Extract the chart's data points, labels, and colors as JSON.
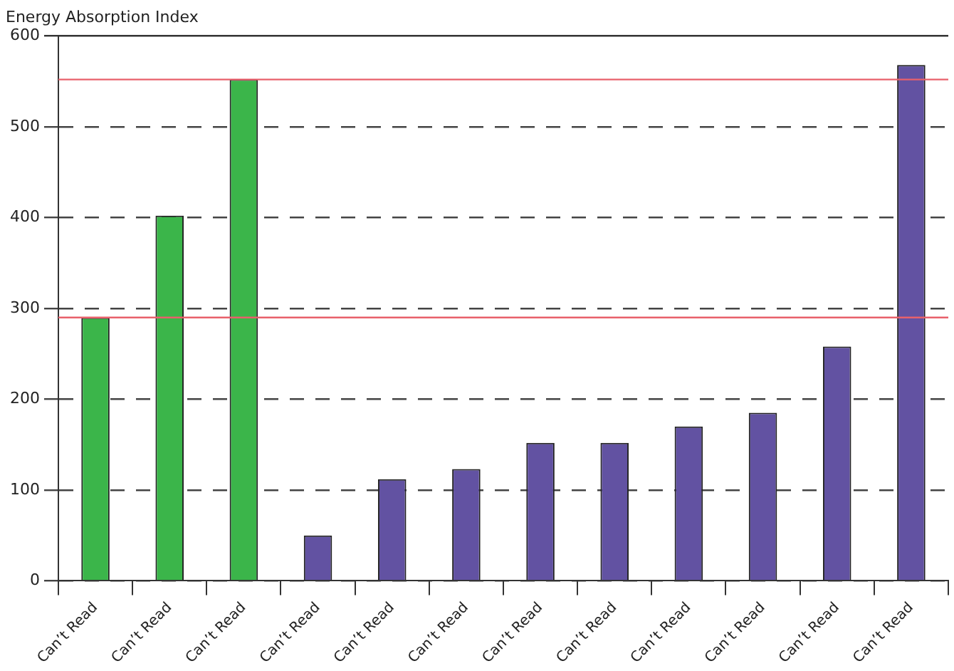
{
  "chart_data": {
    "type": "bar",
    "title": "Energy Absorption Index",
    "categories": [
      "Can’t Read",
      "Can’t Read",
      "Can’t Read",
      "Can’t Read",
      "Can’t Read",
      "Can’t Read",
      "Can’t Read",
      "Can’t Read",
      "Can’t Read",
      "Can’t Read",
      "Can’t Read",
      "Can’t Read"
    ],
    "values": [
      290,
      402,
      552,
      50,
      112,
      123,
      152,
      152,
      170,
      185,
      258,
      568
    ],
    "colors": [
      "#3bb54a",
      "#3bb54a",
      "#3bb54a",
      "#6252a2",
      "#6252a2",
      "#6252a2",
      "#6252a2",
      "#6252a2",
      "#6252a2",
      "#6252a2",
      "#6252a2",
      "#6252a2"
    ],
    "ylim": [
      0,
      600
    ],
    "yticks": [
      0,
      100,
      200,
      300,
      400,
      500,
      600
    ],
    "grid": "y",
    "legend": false,
    "ref_lines": [
      {
        "axis": "y",
        "value": 290,
        "color": "#e8616b"
      },
      {
        "axis": "y",
        "value": 552,
        "color": "#e8616b"
      }
    ]
  }
}
